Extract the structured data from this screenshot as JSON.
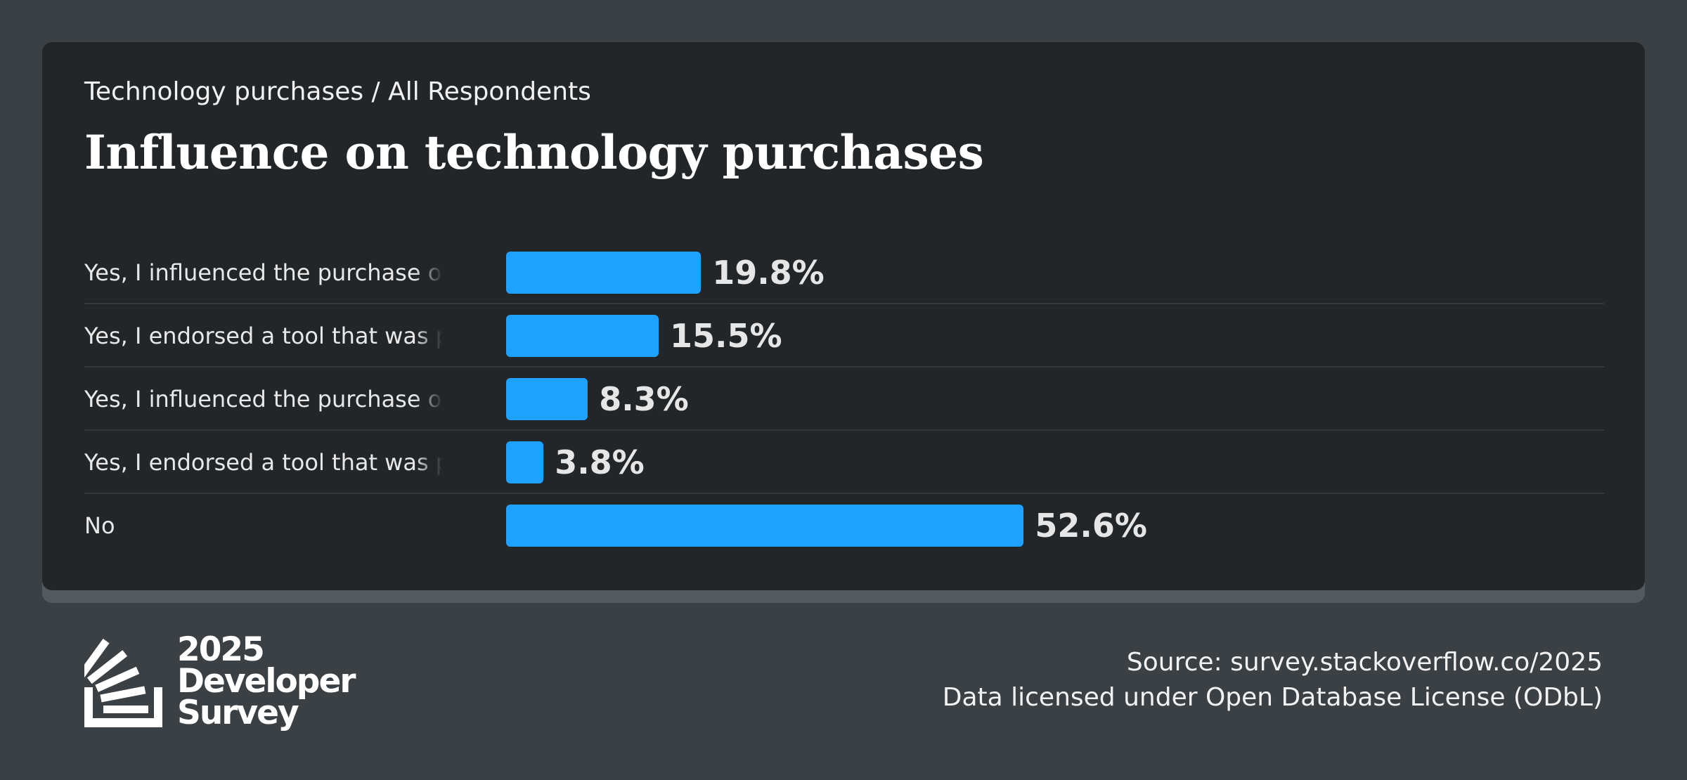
{
  "breadcrumb": "Technology purchases / All Respondents",
  "title": "Influence on technology purchases",
  "colors": {
    "bar": "#1ea1ff",
    "background": "#3b4045",
    "card": "#232629"
  },
  "chart_data": {
    "type": "bar",
    "orientation": "horizontal",
    "title": "Influence on technology purchases",
    "categories": [
      "Yes, I influenced the purchase of a tool",
      "Yes, I endorsed a tool that was purchased",
      "Yes, I influenced the purchase of a tool",
      "Yes, I endorsed a tool that was purchased",
      "No"
    ],
    "values": [
      19.8,
      15.5,
      8.3,
      3.8,
      52.6
    ],
    "value_labels": [
      "19.8%",
      "15.5%",
      "8.3%",
      "3.8%",
      "52.6%"
    ],
    "unit": "%",
    "xlim": [
      0,
      100
    ],
    "grid": false,
    "legend": "none"
  },
  "logo": {
    "line1": "2025",
    "line2": "Developer",
    "line3": "Survey",
    "icon": "stack-overflow-logo-icon"
  },
  "footer": {
    "source": "Source: survey.stackoverflow.co/2025",
    "license": "Data licensed under Open Database License (ODbL)"
  }
}
